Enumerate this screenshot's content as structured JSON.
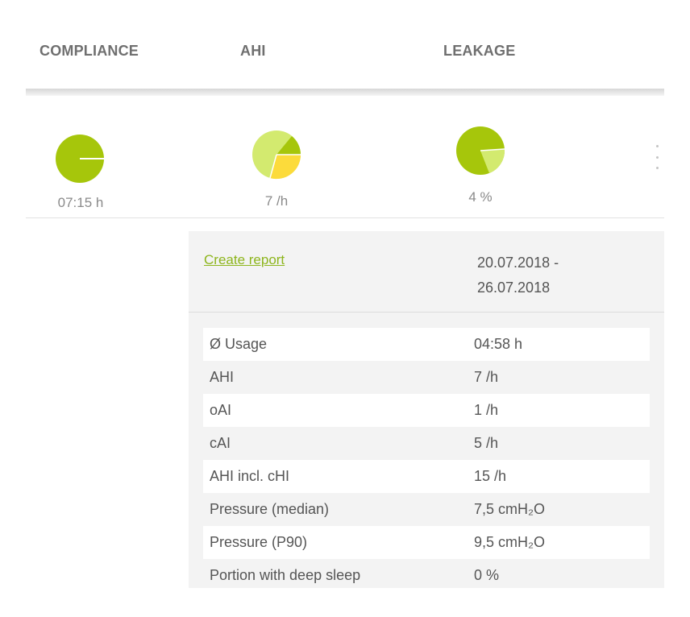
{
  "columns": {
    "compliance": "COMPLIANCE",
    "ahi": "AHI",
    "leakage": "LEAKAGE"
  },
  "summary": {
    "compliance_value": "07:15 h",
    "ahi_value": "7 /h",
    "leakage_value": "4 %"
  },
  "colors": {
    "green_dark": "#a6c60b",
    "green_light": "#d3ea6f",
    "yellow": "#fcdb3b",
    "link": "#8db51c"
  },
  "details": {
    "create_report": "Create report",
    "date_range_line1": "20.07.2018 -",
    "date_range_line2": "26.07.2018",
    "stats": [
      {
        "label": "Ø Usage",
        "value": "04:58 h"
      },
      {
        "label": "AHI",
        "value": "7 /h"
      },
      {
        "label": "oAI",
        "value": "1 /h"
      },
      {
        "label": "cAI",
        "value": "5 /h"
      },
      {
        "label": "AHI incl. cHI",
        "value": "15 /h"
      },
      {
        "label": "Pressure (median)",
        "value": "7,5 cmH₂O"
      },
      {
        "label": "Pressure (P90)",
        "value": "9,5 cmH₂O"
      },
      {
        "label": "Portion with deep sleep",
        "value": "0 %"
      }
    ]
  },
  "icons": {
    "more": "more-vertical-icon"
  }
}
